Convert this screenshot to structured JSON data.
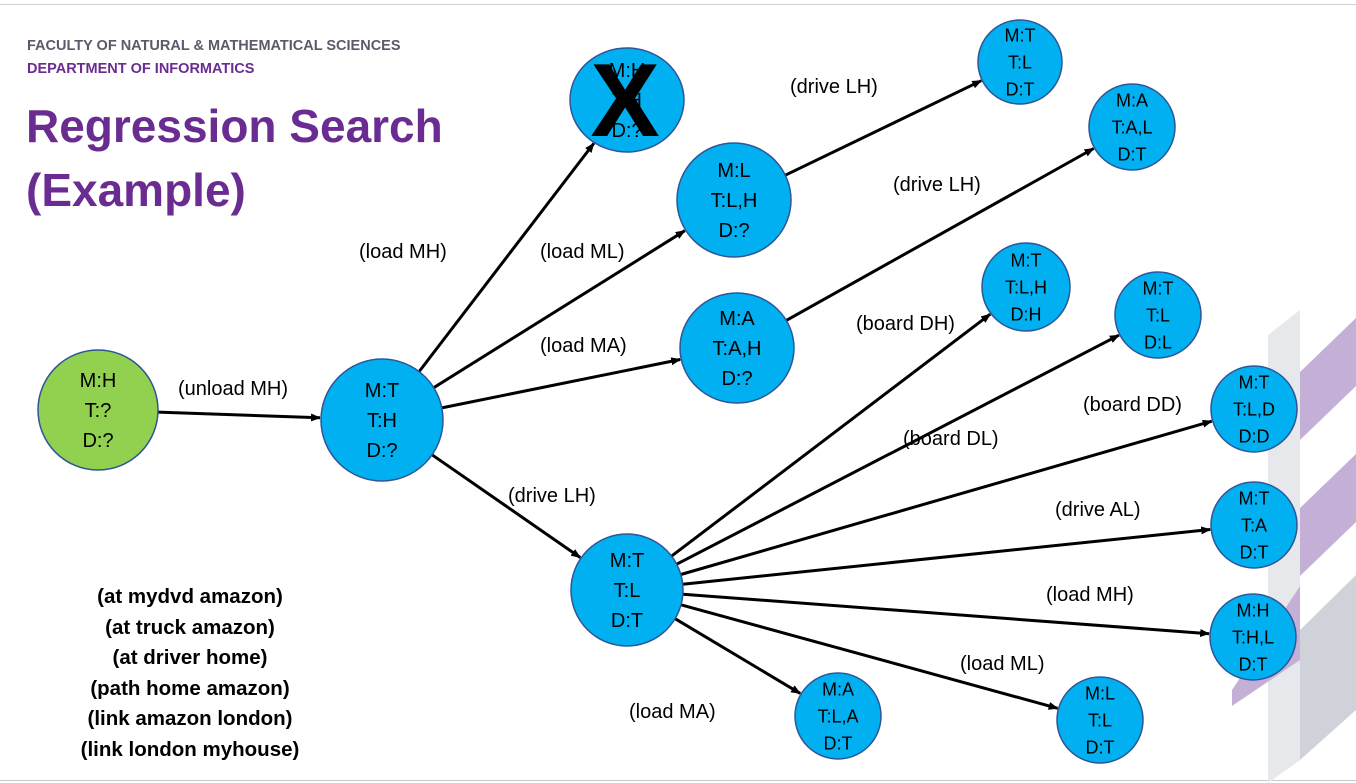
{
  "header": {
    "faculty": "FACULTY OF NATURAL & MATHEMATICAL SCIENCES",
    "department": "DEPARTMENT OF INFORMATICS"
  },
  "title": {
    "line1": "Regression Search",
    "line2": "(Example)"
  },
  "colors": {
    "title_purple": "#6b2c91",
    "node_blue": "#00b0f0",
    "node_green": "#92d050",
    "decor_purple": "#c4b0d6",
    "decor_grey": "#e6e8ec"
  },
  "facts": [
    "(at mydvd amazon)",
    "(at truck amazon)",
    "(at driver home)",
    "(path home amazon)",
    "(link amazon london)",
    "(link london myhouse)"
  ],
  "diagram": {
    "nodes": {
      "start": {
        "lines": [
          "M:H",
          "T:?",
          "D:?"
        ],
        "color": "green"
      },
      "n1": {
        "lines": [
          "M:T",
          "T:H",
          "D:?"
        ],
        "color": "blue"
      },
      "n2": {
        "lines": [
          "M:H",
          "T:H",
          "D:?"
        ],
        "color": "blue",
        "crossed": true
      },
      "n3": {
        "lines": [
          "M:L",
          "T:L,H",
          "D:?"
        ],
        "color": "blue"
      },
      "n4": {
        "lines": [
          "M:A",
          "T:A,H",
          "D:?"
        ],
        "color": "blue"
      },
      "n5": {
        "lines": [
          "M:T",
          "T:L",
          "D:T"
        ],
        "color": "blue"
      },
      "n6": {
        "lines": [
          "M:T",
          "T:L",
          "D:T"
        ],
        "color": "blue"
      },
      "n7": {
        "lines": [
          "M:A",
          "T:A,L",
          "D:T"
        ],
        "color": "blue"
      },
      "n8": {
        "lines": [
          "M:T",
          "T:L,H",
          "D:H"
        ],
        "color": "blue"
      },
      "n9": {
        "lines": [
          "M:T",
          "T:L",
          "D:L"
        ],
        "color": "blue"
      },
      "n10": {
        "lines": [
          "M:T",
          "T:L,D",
          "D:D"
        ],
        "color": "blue"
      },
      "n11": {
        "lines": [
          "M:T",
          "T:A",
          "D:T"
        ],
        "color": "blue"
      },
      "n12": {
        "lines": [
          "M:H",
          "T:H,L",
          "D:T"
        ],
        "color": "blue"
      },
      "n13": {
        "lines": [
          "M:L",
          "T:L",
          "D:T"
        ],
        "color": "blue"
      },
      "n14": {
        "lines": [
          "M:A",
          "T:L,A",
          "D:T"
        ],
        "color": "blue"
      }
    },
    "edges": [
      {
        "from": "start",
        "to": "n1",
        "label": "(unload MH)"
      },
      {
        "from": "n1",
        "to": "n2",
        "label": "(load MH)"
      },
      {
        "from": "n1",
        "to": "n3",
        "label": "(load ML)"
      },
      {
        "from": "n1",
        "to": "n4",
        "label": "(load MA)"
      },
      {
        "from": "n1",
        "to": "n6",
        "label": "(drive LH)"
      },
      {
        "from": "n3",
        "to": "n5",
        "label": "(drive LH)"
      },
      {
        "from": "n4",
        "to": "n7",
        "label": "(drive LH)"
      },
      {
        "from": "n6",
        "to": "n8",
        "label": "(board DH)"
      },
      {
        "from": "n6",
        "to": "n9",
        "label": "(board DL)"
      },
      {
        "from": "n6",
        "to": "n10",
        "label": "(board DD)"
      },
      {
        "from": "n6",
        "to": "n11",
        "label": "(drive AL)"
      },
      {
        "from": "n6",
        "to": "n12",
        "label": "(load MH)"
      },
      {
        "from": "n6",
        "to": "n13",
        "label": "(load ML)"
      },
      {
        "from": "n6",
        "to": "n14",
        "label": "(load MA)"
      }
    ],
    "cross_mark": "X"
  }
}
